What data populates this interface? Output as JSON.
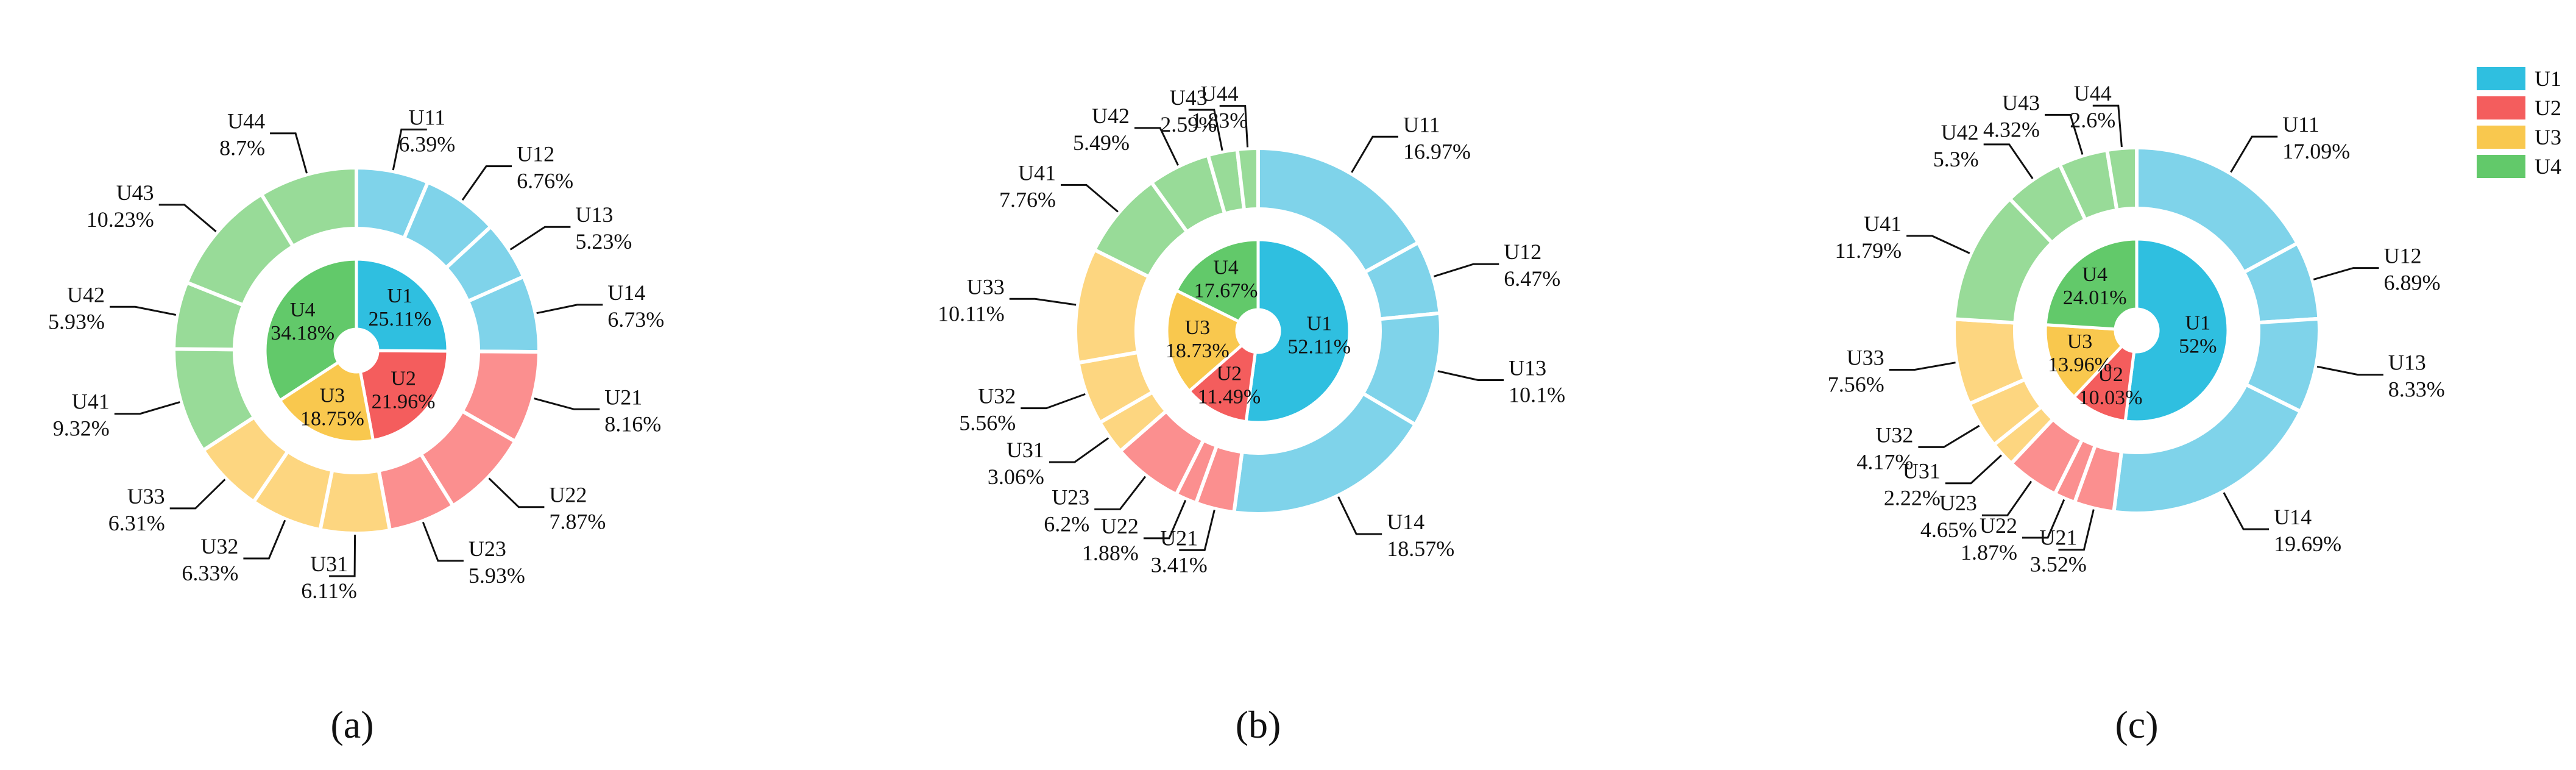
{
  "colors": {
    "U1": {
      "inner": "#2fbfe0",
      "outer": "#7fd3ea"
    },
    "U2": {
      "inner": "#f45d5d",
      "outer": "#fb8f8f"
    },
    "U3": {
      "inner": "#f9c84e",
      "outer": "#fdd680"
    },
    "U4": {
      "inner": "#62c96a",
      "outer": "#98db98"
    }
  },
  "chart_data": [
    {
      "type": "pie",
      "panel_label": "(a)",
      "inner": [
        {
          "name": "U1",
          "value": "25.11%",
          "v": 25.11
        },
        {
          "name": "U2",
          "value": "21.96%",
          "v": 21.96
        },
        {
          "name": "U3",
          "value": "18.75%",
          "v": 18.75
        },
        {
          "name": "U4",
          "value": "34.18%",
          "v": 34.18
        }
      ],
      "outer": [
        {
          "name": "U11",
          "value": "6.39%",
          "v": 6.39
        },
        {
          "name": "U12",
          "value": "6.76%",
          "v": 6.76
        },
        {
          "name": "U13",
          "value": "5.23%",
          "v": 5.23
        },
        {
          "name": "U14",
          "value": "6.73%",
          "v": 6.73
        },
        {
          "name": "U21",
          "value": "8.16%",
          "v": 8.16
        },
        {
          "name": "U22",
          "value": "7.87%",
          "v": 7.87
        },
        {
          "name": "U23",
          "value": "5.93%",
          "v": 5.93
        },
        {
          "name": "U31",
          "value": "6.11%",
          "v": 6.11
        },
        {
          "name": "U32",
          "value": "6.33%",
          "v": 6.33
        },
        {
          "name": "U33",
          "value": "6.31%",
          "v": 6.31
        },
        {
          "name": "U41",
          "value": "9.32%",
          "v": 9.32
        },
        {
          "name": "U42",
          "value": "5.93%",
          "v": 5.93
        },
        {
          "name": "U43",
          "value": "10.23%",
          "v": 10.23
        },
        {
          "name": "U44",
          "value": "8.7%",
          "v": 8.7
        }
      ]
    },
    {
      "type": "pie",
      "panel_label": "(b)",
      "inner": [
        {
          "name": "U1",
          "value": "52.11%",
          "v": 52.11
        },
        {
          "name": "U2",
          "value": "11.49%",
          "v": 11.49
        },
        {
          "name": "U3",
          "value": "18.73%",
          "v": 18.73
        },
        {
          "name": "U4",
          "value": "17.67%",
          "v": 17.67
        }
      ],
      "outer": [
        {
          "name": "U11",
          "value": "16.97%",
          "v": 16.97
        },
        {
          "name": "U12",
          "value": "6.47%",
          "v": 6.47
        },
        {
          "name": "U13",
          "value": "10.1%",
          "v": 10.1
        },
        {
          "name": "U14",
          "value": "18.57%",
          "v": 18.57
        },
        {
          "name": "U21",
          "value": "3.41%",
          "v": 3.41
        },
        {
          "name": "U22",
          "value": "1.88%",
          "v": 1.88
        },
        {
          "name": "U23",
          "value": "6.2%",
          "v": 6.2
        },
        {
          "name": "U31",
          "value": "3.06%",
          "v": 3.06
        },
        {
          "name": "U32",
          "value": "5.56%",
          "v": 5.56
        },
        {
          "name": "U33",
          "value": "10.11%",
          "v": 10.11
        },
        {
          "name": "U41",
          "value": "7.76%",
          "v": 7.76
        },
        {
          "name": "U42",
          "value": "5.49%",
          "v": 5.49
        },
        {
          "name": "U43",
          "value": "2.59%",
          "v": 2.59
        },
        {
          "name": "U44",
          "value": "1.83%",
          "v": 1.83
        }
      ]
    },
    {
      "type": "pie",
      "panel_label": "(c)",
      "inner": [
        {
          "name": "U1",
          "value": "52%",
          "v": 52.0
        },
        {
          "name": "U2",
          "value": "10.03%",
          "v": 10.03
        },
        {
          "name": "U3",
          "value": "13.96%",
          "v": 13.96
        },
        {
          "name": "U4",
          "value": "24.01%",
          "v": 24.01
        }
      ],
      "outer": [
        {
          "name": "U11",
          "value": "17.09%",
          "v": 17.09
        },
        {
          "name": "U12",
          "value": "6.89%",
          "v": 6.89
        },
        {
          "name": "U13",
          "value": "8.33%",
          "v": 8.33
        },
        {
          "name": "U14",
          "value": "19.69%",
          "v": 19.69
        },
        {
          "name": "U21",
          "value": "3.52%",
          "v": 3.52
        },
        {
          "name": "U22",
          "value": "1.87%",
          "v": 1.87
        },
        {
          "name": "U23",
          "value": "4.65%",
          "v": 4.65
        },
        {
          "name": "U31",
          "value": "2.22%",
          "v": 2.22
        },
        {
          "name": "U32",
          "value": "4.17%",
          "v": 4.17
        },
        {
          "name": "U33",
          "value": "7.56%",
          "v": 7.56
        },
        {
          "name": "U41",
          "value": "11.79%",
          "v": 11.79
        },
        {
          "name": "U42",
          "value": "5.3%",
          "v": 5.3
        },
        {
          "name": "U43",
          "value": "4.32%",
          "v": 4.32
        },
        {
          "name": "U44",
          "value": "2.6%",
          "v": 2.6
        }
      ]
    }
  ],
  "legend": [
    "U1",
    "U2",
    "U3",
    "U4"
  ]
}
